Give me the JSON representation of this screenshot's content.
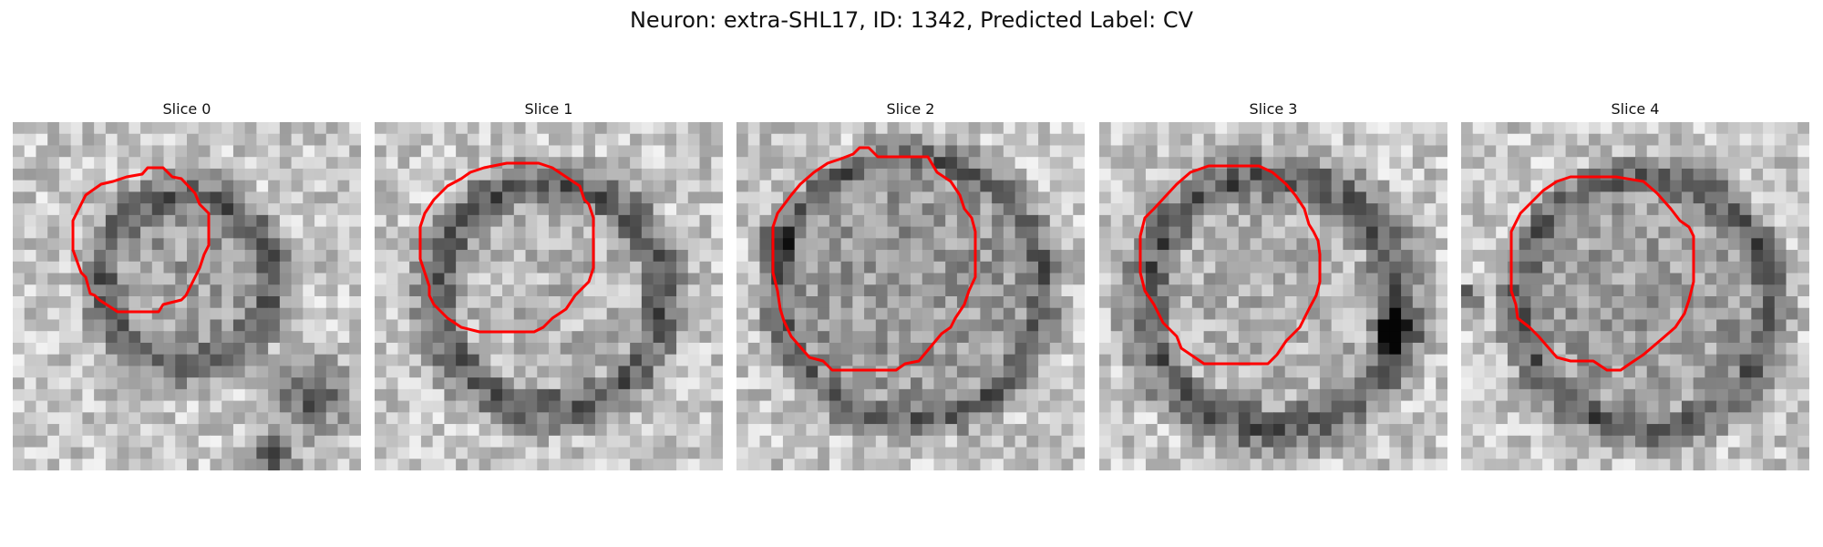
{
  "figure": {
    "title": "Neuron: extra-SHL17, ID: 1342, Predicted Label: CV",
    "contour_color": "#ff0000"
  },
  "panels": [
    {
      "title": "Slice 0"
    },
    {
      "title": "Slice 1"
    },
    {
      "title": "Slice 2"
    },
    {
      "title": "Slice 3"
    },
    {
      "title": "Slice 4"
    }
  ]
}
